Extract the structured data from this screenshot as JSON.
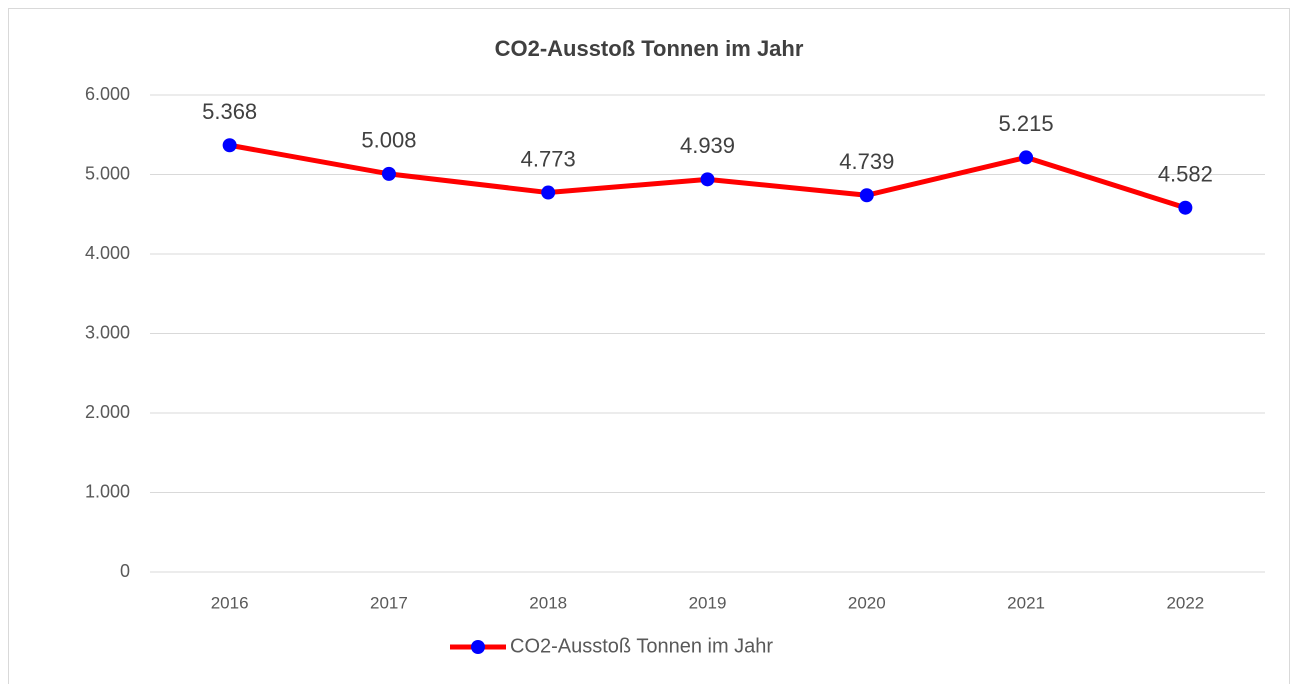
{
  "chart_data": {
    "type": "line",
    "title": "CO2-Ausstoß  Tonnen im Jahr",
    "categories": [
      "2016",
      "2017",
      "2018",
      "2019",
      "2020",
      "2021",
      "2022"
    ],
    "series": [
      {
        "name": "CO2-Ausstoß  Tonnen im Jahr",
        "color": "#ff0000",
        "marker_color": "#0000ff",
        "values": [
          5368,
          5008,
          4773,
          4939,
          4739,
          5215,
          4582
        ],
        "value_labels": [
          "5.368",
          "5.008",
          "4.773",
          "4.939",
          "4.739",
          "5.215",
          "4.582"
        ]
      }
    ],
    "ylim": [
      0,
      6000
    ],
    "yticks": [
      0,
      {
        "value": 1000,
        "label": "1.000"
      },
      {
        "value": 2000,
        "label": "2.000"
      },
      {
        "value": 3000,
        "label": "3.000"
      },
      {
        "value": 4000,
        "label": "4.000"
      },
      {
        "value": 5000,
        "label": "5.000"
      },
      {
        "value": 6000,
        "label": "6.000"
      }
    ],
    "grid": true,
    "legend": "bottom"
  }
}
